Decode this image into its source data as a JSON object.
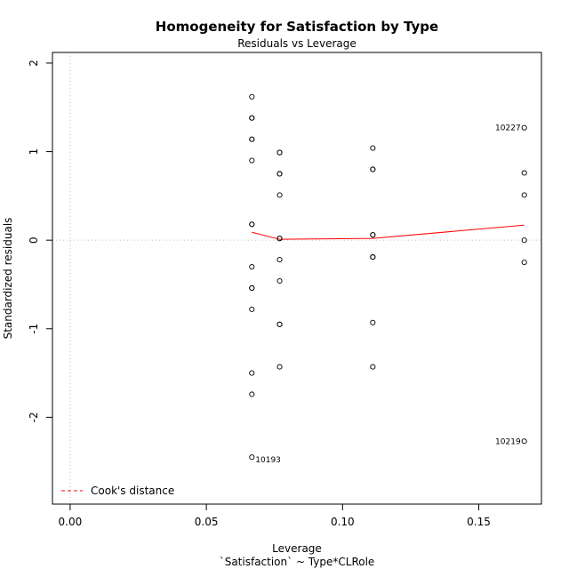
{
  "chart_data": {
    "type": "scatter",
    "title": "Homogeneity for Satisfaction by Type",
    "subtitle": "Residuals vs Leverage",
    "xlabel": "Leverage",
    "xlabel2": "`Satisfaction` ~ Type*CLRole",
    "ylabel": "Standardized residuals",
    "xlim": [
      -0.0065,
      0.173
    ],
    "ylim": [
      -2.98,
      2.12
    ],
    "x_ticks": [
      0.0,
      0.05,
      0.1,
      0.15
    ],
    "x_tick_labels": [
      "0.00",
      "0.05",
      "0.10",
      "0.15"
    ],
    "y_ticks": [
      -2,
      -1,
      0,
      1,
      2
    ],
    "y_tick_labels": [
      "-2",
      "-1",
      "0",
      "1",
      "2"
    ],
    "points": [
      {
        "x": 0.0667,
        "y": 1.62
      },
      {
        "x": 0.0667,
        "y": 1.38
      },
      {
        "x": 0.0667,
        "y": 1.38
      },
      {
        "x": 0.0667,
        "y": 1.14
      },
      {
        "x": 0.0667,
        "y": 1.14
      },
      {
        "x": 0.0667,
        "y": 0.9
      },
      {
        "x": 0.0667,
        "y": 0.18
      },
      {
        "x": 0.0667,
        "y": 0.18
      },
      {
        "x": 0.0667,
        "y": -0.3
      },
      {
        "x": 0.0667,
        "y": -0.54
      },
      {
        "x": 0.0667,
        "y": -0.54
      },
      {
        "x": 0.0667,
        "y": -0.78
      },
      {
        "x": 0.0667,
        "y": -1.5
      },
      {
        "x": 0.0667,
        "y": -1.74
      },
      {
        "x": 0.0667,
        "y": -2.45
      },
      {
        "x": 0.0769,
        "y": 0.99
      },
      {
        "x": 0.0769,
        "y": 0.99
      },
      {
        "x": 0.0769,
        "y": 0.75
      },
      {
        "x": 0.0769,
        "y": 0.75
      },
      {
        "x": 0.0769,
        "y": 0.51
      },
      {
        "x": 0.0769,
        "y": 0.02
      },
      {
        "x": 0.0769,
        "y": 0.02
      },
      {
        "x": 0.0769,
        "y": -0.22
      },
      {
        "x": 0.0769,
        "y": -0.46
      },
      {
        "x": 0.0769,
        "y": -0.95
      },
      {
        "x": 0.0769,
        "y": -0.95
      },
      {
        "x": 0.0769,
        "y": -1.43
      },
      {
        "x": 0.1111,
        "y": 1.04
      },
      {
        "x": 0.1111,
        "y": 0.8
      },
      {
        "x": 0.1111,
        "y": 0.8
      },
      {
        "x": 0.1111,
        "y": 0.06
      },
      {
        "x": 0.1111,
        "y": 0.06
      },
      {
        "x": 0.1111,
        "y": -0.19
      },
      {
        "x": 0.1111,
        "y": -0.19
      },
      {
        "x": 0.1111,
        "y": -0.93
      },
      {
        "x": 0.1111,
        "y": -1.43
      },
      {
        "x": 0.1667,
        "y": 1.27
      },
      {
        "x": 0.1667,
        "y": 0.76
      },
      {
        "x": 0.1667,
        "y": 0.51
      },
      {
        "x": 0.1667,
        "y": 0.0
      },
      {
        "x": 0.1667,
        "y": -0.25
      },
      {
        "x": 0.1667,
        "y": -2.27
      }
    ],
    "point_labels": [
      {
        "x": 0.0667,
        "y": -2.45,
        "text": "10193",
        "side": "right"
      },
      {
        "x": 0.1667,
        "y": 1.27,
        "text": "10227",
        "side": "left"
      },
      {
        "x": 0.1667,
        "y": -2.27,
        "text": "10219",
        "side": "left"
      }
    ],
    "smooth_line": {
      "x": [
        0.0667,
        0.0769,
        0.1111,
        0.1667
      ],
      "y": [
        0.09,
        0.01,
        0.02,
        0.17
      ],
      "color": "#ff0000"
    },
    "reference_lines": {
      "h": 0,
      "v": 0,
      "color": "#bebebe"
    },
    "legend": {
      "position": "bottom-left",
      "entries": [
        {
          "label": "Cook's distance",
          "color": "#ff0000",
          "style": "dashed"
        }
      ]
    }
  }
}
